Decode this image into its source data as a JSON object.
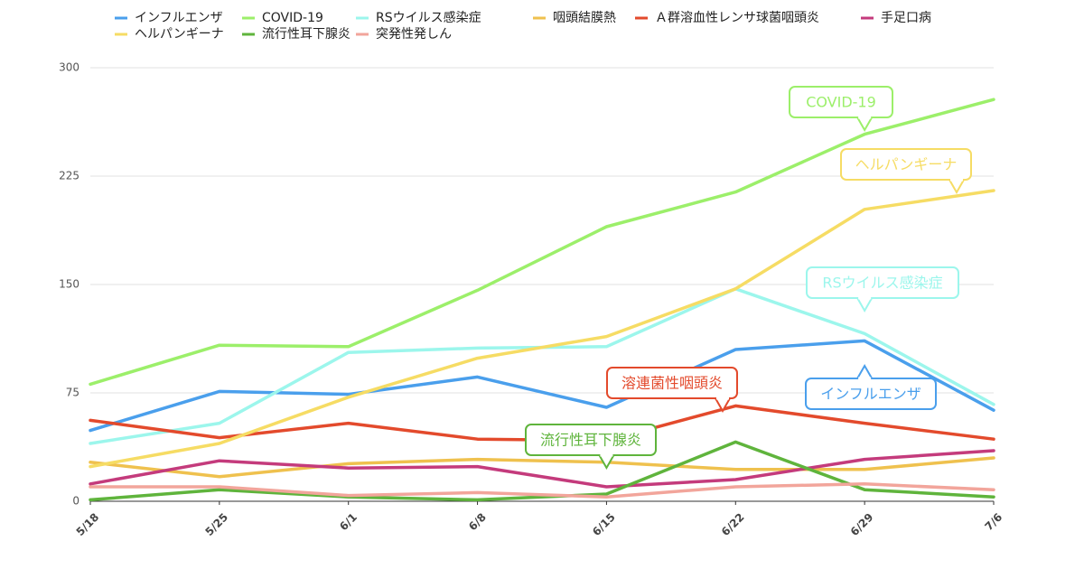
{
  "chart_data": {
    "type": "line",
    "title": "",
    "xlabel": "",
    "ylabel": "",
    "x": [
      "5/18",
      "5/25",
      "6/1",
      "6/8",
      "6/15",
      "6/22",
      "6/29",
      "7/6"
    ],
    "ylim": [
      0,
      300
    ],
    "yticks": [
      0,
      75,
      150,
      225,
      300
    ],
    "grid": true,
    "legend_position": "top",
    "series": [
      {
        "name": "インフルエンザ",
        "color": "#4a9fec",
        "values": [
          49,
          76,
          74,
          86,
          65,
          105,
          111,
          63
        ]
      },
      {
        "name": "COVID-19",
        "color": "#9cef6a",
        "values": [
          81,
          108,
          107,
          146,
          190,
          214,
          254,
          278
        ]
      },
      {
        "name": "RSウイルス感染症",
        "color": "#9cf6ec",
        "values": [
          40,
          54,
          103,
          106,
          107,
          147,
          116,
          67
        ]
      },
      {
        "name": "咽頭結膜熱",
        "color": "#efc14e",
        "values": [
          27,
          17,
          26,
          29,
          27,
          22,
          22,
          30
        ]
      },
      {
        "name": "Ａ群溶血性レンサ球菌咽頭炎",
        "color": "#e34a2c",
        "values": [
          56,
          44,
          54,
          43,
          42,
          66,
          54,
          43
        ]
      },
      {
        "name": "手足口病",
        "color": "#c43b7c",
        "values": [
          12,
          28,
          23,
          24,
          10,
          15,
          29,
          35
        ]
      },
      {
        "name": "ヘルパンギーナ",
        "color": "#f6dc64",
        "values": [
          24,
          40,
          72,
          99,
          114,
          147,
          202,
          215
        ]
      },
      {
        "name": "流行性耳下腺炎",
        "color": "#5fb43c",
        "values": [
          1,
          8,
          3,
          1,
          5,
          41,
          8,
          3
        ]
      },
      {
        "name": "突発性発しん",
        "color": "#f2a59b",
        "values": [
          10,
          10,
          4,
          6,
          3,
          10,
          12,
          8
        ]
      }
    ],
    "annotations": [
      {
        "text": "COVID-19",
        "color": "#9cef6a",
        "series": "COVID-19",
        "at": "6/29"
      },
      {
        "text": "ヘルパンギーナ",
        "color": "#f6dc64",
        "series": "ヘルパンギーナ",
        "at": "7/6"
      },
      {
        "text": "RSウイルス感染症",
        "color": "#9cf6ec",
        "series": "RSウイルス感染症",
        "at": "6/29"
      },
      {
        "text": "溶連菌性咽頭炎",
        "color": "#e34a2c",
        "series": "Ａ群溶血性レンサ球菌咽頭炎",
        "at": "6/22"
      },
      {
        "text": "インフルエンザ",
        "color": "#4a9fec",
        "series": "インフルエンザ",
        "at": "6/29"
      },
      {
        "text": "流行性耳下腺炎",
        "color": "#5fb43c",
        "series": "流行性耳下腺炎",
        "at": "6/15"
      }
    ]
  }
}
